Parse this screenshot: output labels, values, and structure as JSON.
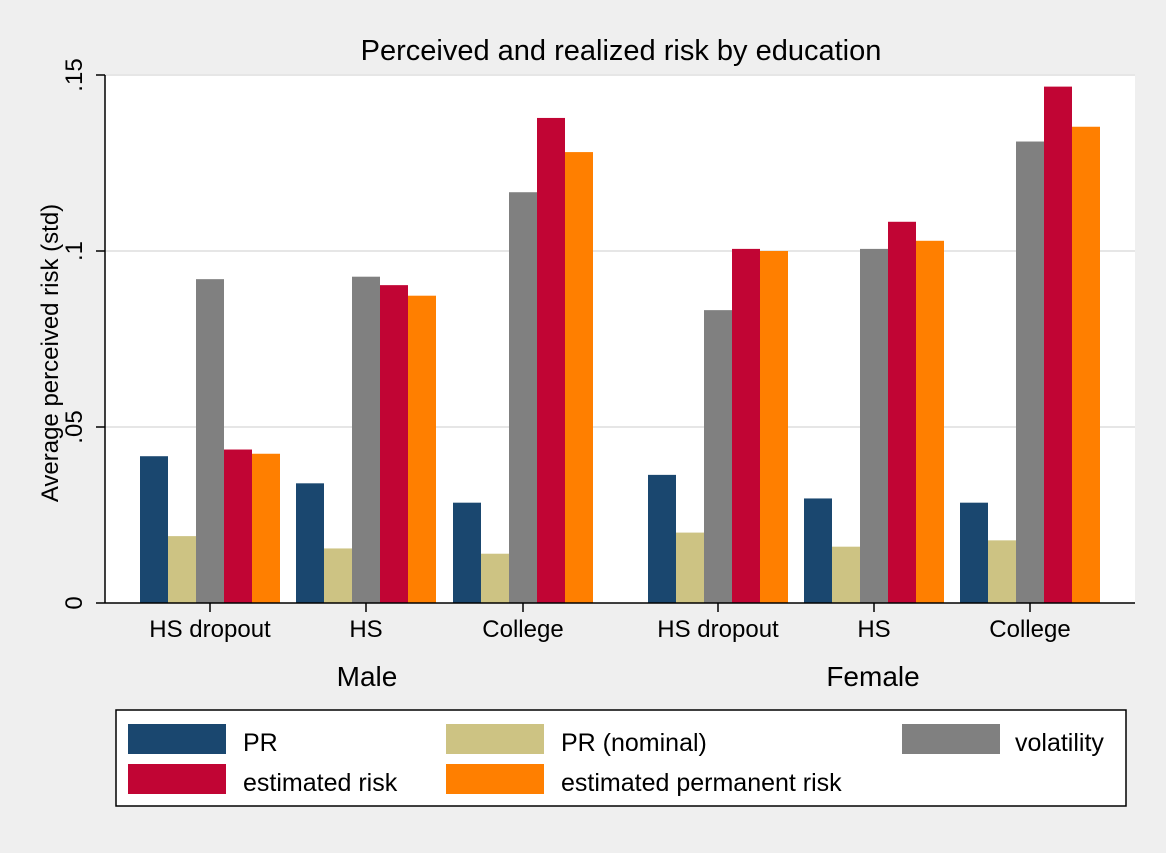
{
  "chart_data": {
    "type": "bar",
    "title": "Perceived and realized risk by education",
    "ylabel": "Average perceived risk (std)",
    "xlabel": "",
    "ylim": [
      0,
      0.15
    ],
    "yticks": [
      0,
      0.05,
      0.1,
      0.15
    ],
    "ytick_labels": [
      "0",
      ".05",
      ".1",
      ".15"
    ],
    "grid": true,
    "legend_position": "bottom",
    "groups": [
      {
        "label": "Male",
        "categories": [
          "HS dropout",
          "HS",
          "College"
        ],
        "series": [
          {
            "name": "PR",
            "values": [
              0.0417,
              0.034,
              0.0285
            ]
          },
          {
            "name": "PR (nominal)",
            "values": [
              0.019,
              0.0155,
              0.014
            ]
          },
          {
            "name": "volatility",
            "values": [
              0.092,
              0.0927,
              0.1167
            ]
          },
          {
            "name": "estimated risk",
            "values": [
              0.0436,
              0.0903,
              0.1378
            ]
          },
          {
            "name": "estimated permanent risk",
            "values": [
              0.0424,
              0.0873,
              0.1281
            ]
          }
        ]
      },
      {
        "label": "Female",
        "categories": [
          "HS dropout",
          "HS",
          "College"
        ],
        "series": [
          {
            "name": "PR",
            "values": [
              0.0364,
              0.0297,
              0.0285
            ]
          },
          {
            "name": "PR (nominal)",
            "values": [
              0.02,
              0.016,
              0.0178
            ]
          },
          {
            "name": "volatility",
            "values": [
              0.0832,
              0.1006,
              0.1311
            ]
          },
          {
            "name": "estimated risk",
            "values": [
              0.1006,
              0.1083,
              0.1467
            ]
          },
          {
            "name": "estimated permanent risk",
            "values": [
              0.1,
              0.1029,
              0.1353
            ]
          }
        ]
      }
    ],
    "legend": [
      {
        "name": "PR",
        "color": "#1a476f"
      },
      {
        "name": "PR (nominal)",
        "color": "#cdc383"
      },
      {
        "name": "volatility",
        "color": "#808080"
      },
      {
        "name": "estimated risk",
        "color": "#c10534"
      },
      {
        "name": "estimated permanent risk",
        "color": "#ff7f00"
      }
    ],
    "colors": {
      "PR": "#1a476f",
      "PR (nominal)": "#cdc383",
      "volatility": "#808080",
      "estimated risk": "#c10534",
      "estimated permanent risk": "#ff7f00",
      "background": "#efefef",
      "plot_background": "#ffffff",
      "grid": "#e6e6e6"
    }
  }
}
